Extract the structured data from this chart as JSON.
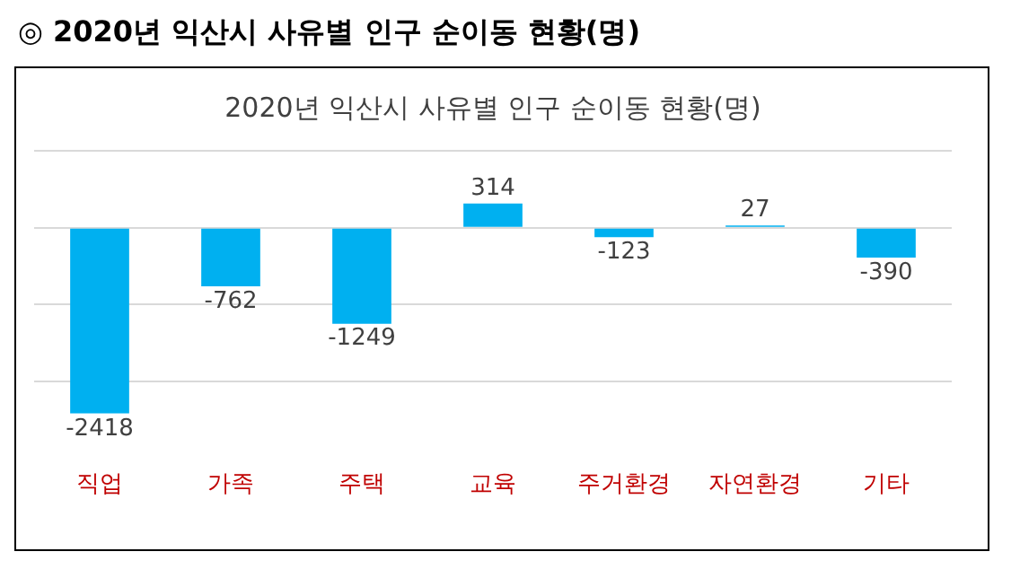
{
  "chart_data": {
    "type": "bar",
    "title": "2020년 익산시 사유별 인구 순이동 현황(명)",
    "annotations": [
      "◎ 2020년 익산시 사유별 인구 순이동 현황(명)"
    ],
    "categories": [
      "직업",
      "가족",
      "주택",
      "교육",
      "주거환경",
      "자연환경",
      "기타"
    ],
    "values": [
      -2418,
      -762,
      -1249,
      314,
      -123,
      27,
      -390
    ],
    "color": "#00b0f0",
    "yticks": [
      {
        "value": 1000,
        "label": null
      },
      {
        "value": 0,
        "label": null
      },
      {
        "value": -1000,
        "label": null
      },
      {
        "value": -2000,
        "label": null
      }
    ],
    "grid": "y",
    "tick_labels": "x",
    "data_labels": true,
    "legend": false
  }
}
